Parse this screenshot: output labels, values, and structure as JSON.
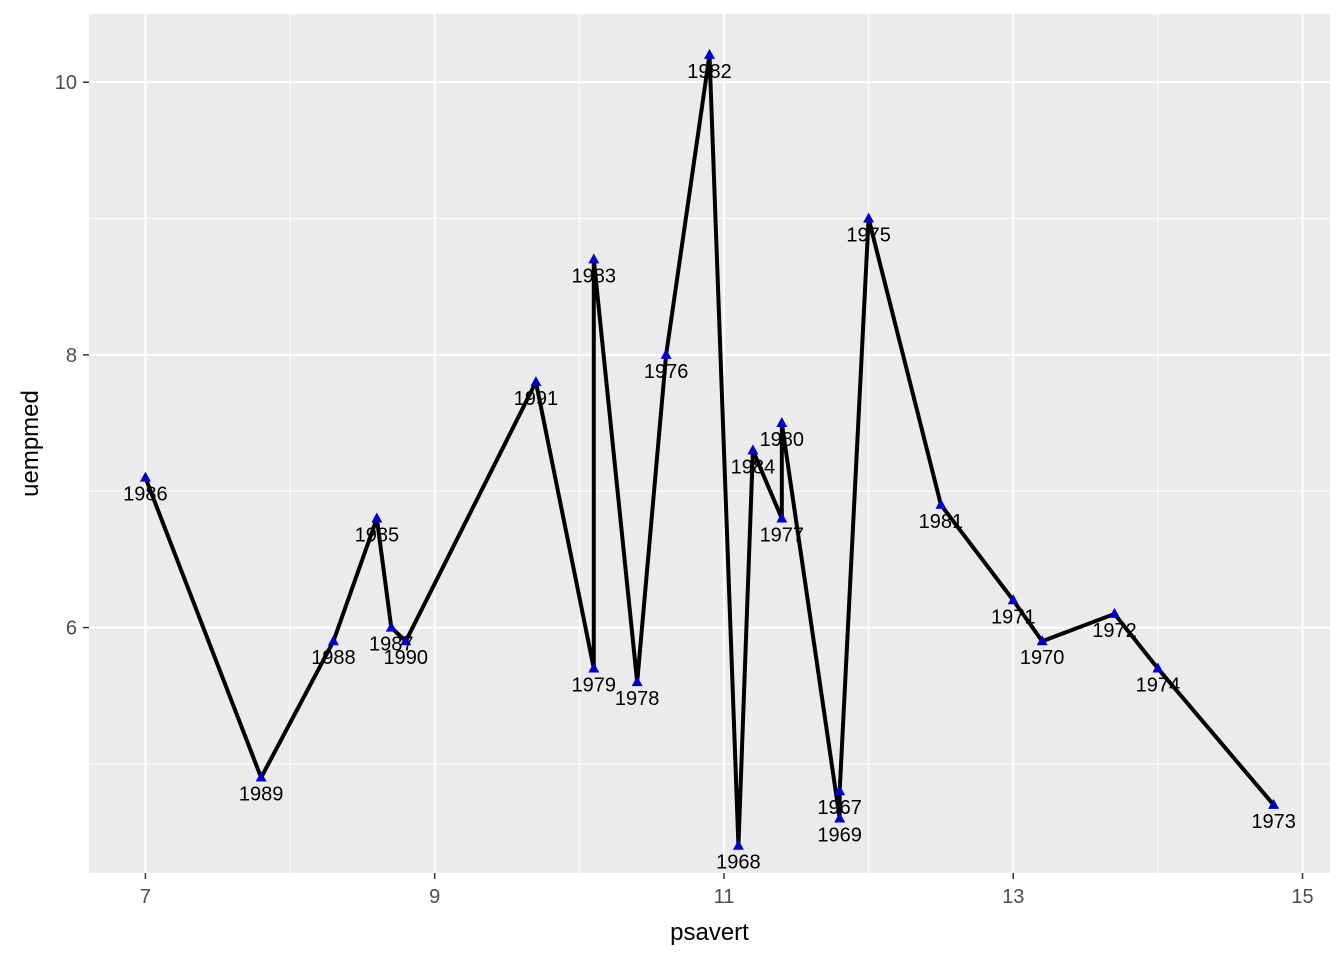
{
  "chart_data": {
    "type": "line",
    "xlabel": "psavert",
    "ylabel": "uempmed",
    "xlim": [
      6.61,
      15.19
    ],
    "ylim": [
      4.2,
      10.5
    ],
    "x_ticks": [
      7,
      9,
      11,
      13,
      15
    ],
    "x_tick_labels": [
      "7",
      "9",
      "11",
      "13",
      "15"
    ],
    "y_ticks": [
      6,
      8,
      10
    ],
    "y_tick_labels": [
      "6",
      "8",
      "10"
    ],
    "grid": true,
    "legend": "none",
    "colors": {
      "panel_background": "#ebebeb",
      "grid_major": "#ffffff",
      "line": "#000000",
      "marker": "#0000cd",
      "label": "#000000"
    },
    "marker": "triangle",
    "series": [
      {
        "points": [
          {
            "label": "1986",
            "x": 7.0,
            "y": 7.1
          },
          {
            "label": "1989",
            "x": 7.8,
            "y": 4.9
          },
          {
            "label": "1988",
            "x": 8.3,
            "y": 5.9
          },
          {
            "label": "1985",
            "x": 8.6,
            "y": 6.8
          },
          {
            "label": "1987",
            "x": 8.7,
            "y": 6.0
          },
          {
            "label": "1990",
            "x": 8.8,
            "y": 5.9
          },
          {
            "label": "1991",
            "x": 9.7,
            "y": 7.8
          },
          {
            "label": "1979",
            "x": 10.1,
            "y": 5.7
          },
          {
            "label": "1983",
            "x": 10.1,
            "y": 8.7
          },
          {
            "label": "1978",
            "x": 10.4,
            "y": 5.6
          },
          {
            "label": "1976",
            "x": 10.6,
            "y": 8.0
          },
          {
            "label": "1982",
            "x": 10.9,
            "y": 10.2
          },
          {
            "label": "1968",
            "x": 11.1,
            "y": 4.4
          },
          {
            "label": "1984",
            "x": 11.2,
            "y": 7.3
          },
          {
            "label": "1977",
            "x": 11.4,
            "y": 6.8
          },
          {
            "label": "1980",
            "x": 11.4,
            "y": 7.5
          },
          {
            "label": "1969",
            "x": 11.8,
            "y": 4.6
          },
          {
            "label": "1967",
            "x": 11.8,
            "y": 4.8
          },
          {
            "label": "1975",
            "x": 12.0,
            "y": 9.0
          },
          {
            "label": "1981",
            "x": 12.5,
            "y": 6.9
          },
          {
            "label": "1971",
            "x": 13.0,
            "y": 6.2
          },
          {
            "label": "1970",
            "x": 13.2,
            "y": 5.9
          },
          {
            "label": "1972",
            "x": 13.7,
            "y": 6.1
          },
          {
            "label": "1974",
            "x": 14.0,
            "y": 5.7
          },
          {
            "label": "1973",
            "x": 14.8,
            "y": 4.7
          }
        ]
      }
    ]
  }
}
